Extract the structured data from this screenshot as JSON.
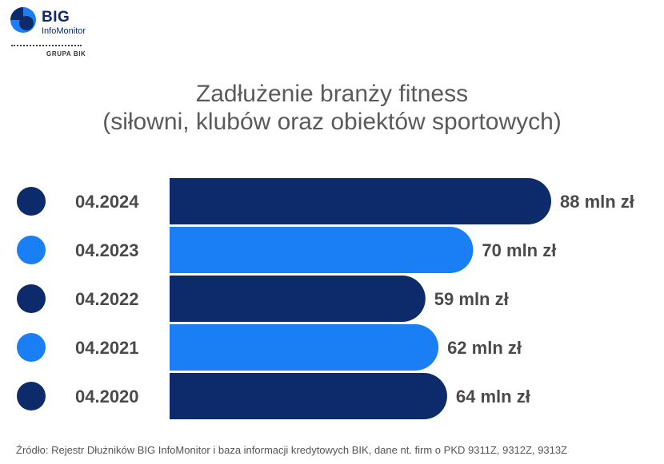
{
  "brand": {
    "name": "BIG",
    "subname": "InfoMonitor",
    "group": "GRUPA BIK",
    "colors": {
      "dark": "#0d2a6b",
      "light": "#1a7ef5"
    }
  },
  "chart_data": {
    "type": "bar",
    "orientation": "horizontal",
    "title": "Zadłużenie branży fitness",
    "subtitle": "(siłowni, klubów oraz obiektów sportowych)",
    "categories": [
      "04.2024",
      "04.2023",
      "04.2022",
      "04.2021",
      "04.2020"
    ],
    "values": [
      88,
      70,
      59,
      62,
      64
    ],
    "value_labels": [
      "88 mln zł",
      "70 mln zł",
      "59 mln zł",
      "62 mln zł",
      "64 mln zł"
    ],
    "unit": "mln zł",
    "bar_colors": [
      "#0d2a6b",
      "#1a7ef5",
      "#0d2a6b",
      "#1a7ef5",
      "#0d2a6b"
    ],
    "xlim": [
      0,
      88
    ],
    "grid": false,
    "legend": "none"
  },
  "source": "Źródło: Rejestr Dłużników BIG InfoMonitor i baza informacji kredytowych BIK, dane nt. firm o PKD 9311Z, 9312Z, 9313Z"
}
